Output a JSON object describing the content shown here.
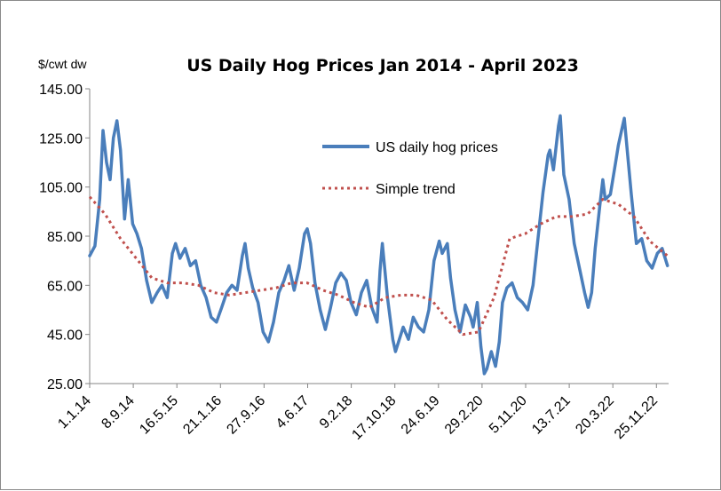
{
  "chart_data": {
    "type": "line",
    "title": "US Daily Hog Prices Jan 2014 - April 2023",
    "ylabel": "$/cwt dw",
    "xlabel": "",
    "ylim": [
      25,
      145
    ],
    "y_ticks": [
      "25.00",
      "45.00",
      "65.00",
      "85.00",
      "105.00",
      "125.00",
      "145.00"
    ],
    "x_ticks": [
      "1.1.14",
      "8.9.14",
      "16.5.15",
      "21.1.16",
      "27.9.16",
      "4.6.17",
      "9.2.18",
      "17.10.18",
      "24.6.19",
      "29.2.20",
      "5.11.20",
      "13.7.21",
      "20.3.22",
      "25.11.22"
    ],
    "grid": false,
    "legend_position": "top-right",
    "series": [
      {
        "name": "US daily hog prices",
        "color": "#4a7ebb",
        "style": "solid",
        "points": [
          [
            "2014-01-01",
            77
          ],
          [
            "2014-02-01",
            81
          ],
          [
            "2014-03-01",
            100
          ],
          [
            "2014-03-20",
            128
          ],
          [
            "2014-04-10",
            115
          ],
          [
            "2014-05-01",
            108
          ],
          [
            "2014-05-20",
            125
          ],
          [
            "2014-06-10",
            132
          ],
          [
            "2014-07-01",
            120
          ],
          [
            "2014-07-25",
            92
          ],
          [
            "2014-08-15",
            108
          ],
          [
            "2014-09-10",
            90
          ],
          [
            "2014-10-05",
            86
          ],
          [
            "2014-11-01",
            80
          ],
          [
            "2014-12-01",
            67
          ],
          [
            "2015-01-01",
            58
          ],
          [
            "2015-02-01",
            62
          ],
          [
            "2015-03-01",
            65
          ],
          [
            "2015-04-01",
            60
          ],
          [
            "2015-05-01",
            78
          ],
          [
            "2015-05-20",
            82
          ],
          [
            "2015-06-15",
            76
          ],
          [
            "2015-07-15",
            80
          ],
          [
            "2015-08-15",
            73
          ],
          [
            "2015-09-15",
            75
          ],
          [
            "2015-10-15",
            65
          ],
          [
            "2015-11-15",
            60
          ],
          [
            "2015-12-15",
            52
          ],
          [
            "2016-01-15",
            50
          ],
          [
            "2016-02-15",
            56
          ],
          [
            "2016-03-15",
            62
          ],
          [
            "2016-04-15",
            65
          ],
          [
            "2016-05-15",
            63
          ],
          [
            "2016-06-15",
            77
          ],
          [
            "2016-07-01",
            82
          ],
          [
            "2016-07-20",
            72
          ],
          [
            "2016-08-15",
            64
          ],
          [
            "2016-09-15",
            58
          ],
          [
            "2016-10-15",
            46
          ],
          [
            "2016-11-15",
            42
          ],
          [
            "2016-12-15",
            50
          ],
          [
            "2017-01-15",
            62
          ],
          [
            "2017-02-15",
            67
          ],
          [
            "2017-03-15",
            73
          ],
          [
            "2017-04-15",
            63
          ],
          [
            "2017-05-15",
            72
          ],
          [
            "2017-06-15",
            86
          ],
          [
            "2017-07-01",
            88
          ],
          [
            "2017-07-20",
            82
          ],
          [
            "2017-08-15",
            66
          ],
          [
            "2017-09-15",
            55
          ],
          [
            "2017-10-15",
            47
          ],
          [
            "2017-11-15",
            56
          ],
          [
            "2017-12-15",
            66
          ],
          [
            "2018-01-15",
            70
          ],
          [
            "2018-02-15",
            67
          ],
          [
            "2018-03-15",
            58
          ],
          [
            "2018-04-15",
            53
          ],
          [
            "2018-05-15",
            62
          ],
          [
            "2018-06-15",
            67
          ],
          [
            "2018-07-15",
            56
          ],
          [
            "2018-08-15",
            50
          ],
          [
            "2018-09-01",
            71
          ],
          [
            "2018-09-15",
            82
          ],
          [
            "2018-10-15",
            60
          ],
          [
            "2018-11-15",
            43
          ],
          [
            "2018-12-01",
            38
          ],
          [
            "2019-01-15",
            48
          ],
          [
            "2019-02-15",
            43
          ],
          [
            "2019-03-15",
            52
          ],
          [
            "2019-04-15",
            48
          ],
          [
            "2019-05-15",
            46
          ],
          [
            "2019-06-15",
            55
          ],
          [
            "2019-07-15",
            75
          ],
          [
            "2019-08-15",
            83
          ],
          [
            "2019-09-01",
            78
          ],
          [
            "2019-10-01",
            82
          ],
          [
            "2019-10-20",
            68
          ],
          [
            "2019-11-15",
            55
          ],
          [
            "2019-12-15",
            46
          ],
          [
            "2020-01-15",
            57
          ],
          [
            "2020-02-15",
            52
          ],
          [
            "2020-03-01",
            48
          ],
          [
            "2020-03-25",
            58
          ],
          [
            "2020-04-15",
            40
          ],
          [
            "2020-05-05",
            29
          ],
          [
            "2020-05-20",
            31
          ],
          [
            "2020-06-15",
            38
          ],
          [
            "2020-07-10",
            32
          ],
          [
            "2020-08-01",
            42
          ],
          [
            "2020-08-20",
            58
          ],
          [
            "2020-09-15",
            64
          ],
          [
            "2020-10-15",
            66
          ],
          [
            "2020-11-15",
            60
          ],
          [
            "2020-12-15",
            58
          ],
          [
            "2021-01-15",
            55
          ],
          [
            "2021-02-15",
            65
          ],
          [
            "2021-03-15",
            83
          ],
          [
            "2021-04-15",
            103
          ],
          [
            "2021-05-15",
            118
          ],
          [
            "2021-05-25",
            120
          ],
          [
            "2021-06-15",
            112
          ],
          [
            "2021-07-15",
            130
          ],
          [
            "2021-07-25",
            134
          ],
          [
            "2021-08-15",
            110
          ],
          [
            "2021-09-15",
            100
          ],
          [
            "2021-10-15",
            82
          ],
          [
            "2021-11-15",
            72
          ],
          [
            "2021-12-15",
            62
          ],
          [
            "2022-01-05",
            56
          ],
          [
            "2022-01-25",
            62
          ],
          [
            "2022-02-15",
            80
          ],
          [
            "2022-03-15",
            98
          ],
          [
            "2022-04-01",
            108
          ],
          [
            "2022-04-15",
            100
          ],
          [
            "2022-05-15",
            102
          ],
          [
            "2022-06-15",
            115
          ],
          [
            "2022-07-01",
            122
          ],
          [
            "2022-07-20",
            128
          ],
          [
            "2022-08-05",
            133
          ],
          [
            "2022-08-25",
            118
          ],
          [
            "2022-09-15",
            102
          ],
          [
            "2022-10-15",
            82
          ],
          [
            "2022-11-15",
            84
          ],
          [
            "2022-12-15",
            75
          ],
          [
            "2023-01-15",
            72
          ],
          [
            "2023-02-15",
            78
          ],
          [
            "2023-03-15",
            80
          ],
          [
            "2023-04-15",
            73
          ]
        ]
      },
      {
        "name": "Simple trend",
        "color": "#c0504d",
        "style": "dotted",
        "points": [
          [
            "2014-01-01",
            101
          ],
          [
            "2014-04-01",
            94
          ],
          [
            "2014-07-01",
            84
          ],
          [
            "2014-10-01",
            76
          ],
          [
            "2015-01-01",
            68
          ],
          [
            "2015-04-01",
            66
          ],
          [
            "2015-07-01",
            66
          ],
          [
            "2015-10-01",
            65
          ],
          [
            "2016-01-01",
            62
          ],
          [
            "2016-04-01",
            61
          ],
          [
            "2016-07-01",
            62
          ],
          [
            "2016-10-01",
            63
          ],
          [
            "2017-01-01",
            64
          ],
          [
            "2017-04-01",
            66
          ],
          [
            "2017-07-01",
            66
          ],
          [
            "2017-10-01",
            63
          ],
          [
            "2018-01-01",
            61
          ],
          [
            "2018-04-01",
            58
          ],
          [
            "2018-07-01",
            56
          ],
          [
            "2018-10-01",
            60
          ],
          [
            "2019-01-01",
            61
          ],
          [
            "2019-04-01",
            61
          ],
          [
            "2019-07-01",
            59
          ],
          [
            "2019-10-01",
            51
          ],
          [
            "2020-01-01",
            45
          ],
          [
            "2020-04-01",
            46
          ],
          [
            "2020-07-01",
            60
          ],
          [
            "2020-10-01",
            84
          ],
          [
            "2021-01-01",
            86
          ],
          [
            "2021-04-01",
            90
          ],
          [
            "2021-07-01",
            93
          ],
          [
            "2021-10-01",
            93
          ],
          [
            "2022-01-01",
            94
          ],
          [
            "2022-04-01",
            100
          ],
          [
            "2022-07-01",
            98
          ],
          [
            "2022-10-01",
            93
          ],
          [
            "2023-01-01",
            83
          ],
          [
            "2023-04-15",
            77
          ]
        ]
      }
    ]
  }
}
